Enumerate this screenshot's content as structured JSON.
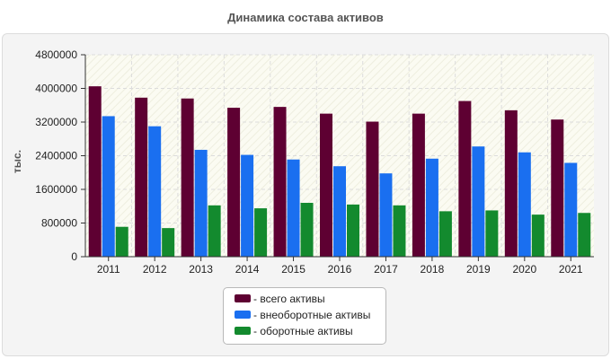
{
  "chart_data": {
    "type": "bar",
    "title": "Динамика состава активов",
    "ylabel": "тыс.",
    "xlabel": "",
    "categories": [
      "2011",
      "2012",
      "2013",
      "2014",
      "2015",
      "2016",
      "2017",
      "2018",
      "2019",
      "2020",
      "2021"
    ],
    "series": [
      {
        "name": "всего активы",
        "color": "#5e0032",
        "values": [
          4050000,
          3780000,
          3760000,
          3540000,
          3560000,
          3400000,
          3210000,
          3400000,
          3700000,
          3480000,
          3260000
        ]
      },
      {
        "name": "внеоборотные активы",
        "color": "#1a6ff0",
        "values": [
          3340000,
          3100000,
          2540000,
          2420000,
          2310000,
          2150000,
          1980000,
          2330000,
          2620000,
          2480000,
          2230000
        ]
      },
      {
        "name": "оборотные активы",
        "color": "#138a2e",
        "values": [
          710000,
          680000,
          1220000,
          1150000,
          1280000,
          1240000,
          1220000,
          1080000,
          1100000,
          1000000,
          1040000
        ]
      }
    ],
    "ylim": [
      0,
      4800000
    ],
    "yticks": [
      0,
      800000,
      1600000,
      2400000,
      3200000,
      4000000,
      4800000
    ],
    "grid": true,
    "legend": "bottom-center",
    "legend_prefix": "- "
  }
}
